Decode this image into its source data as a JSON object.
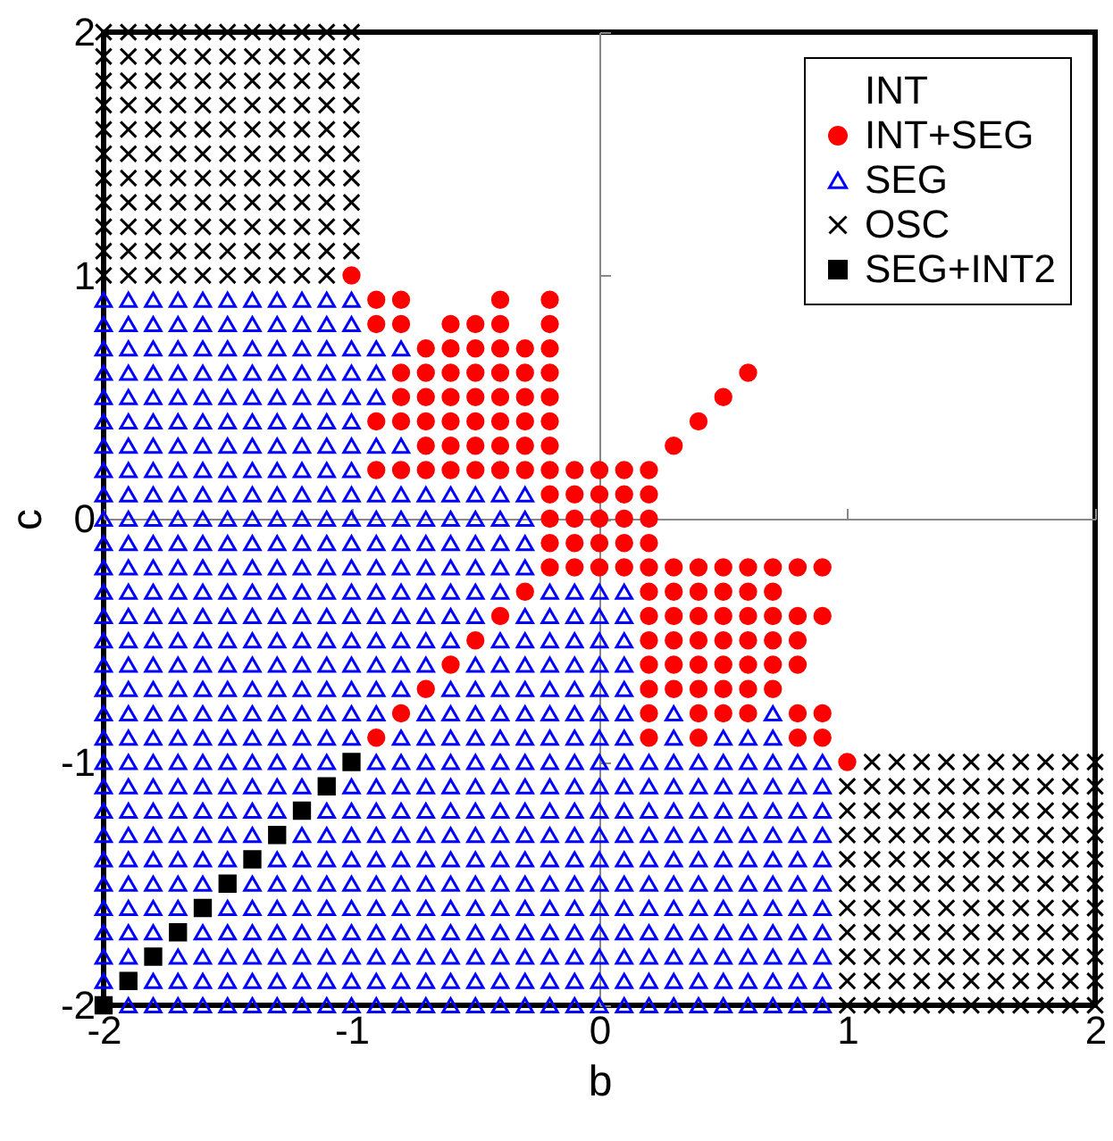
{
  "chart_data": {
    "type": "scatter",
    "xlabel": "b",
    "ylabel": "c",
    "xlim": [
      -2,
      2
    ],
    "ylim": [
      -2,
      2
    ],
    "xticks": [
      -2,
      -1,
      0,
      1,
      2
    ],
    "yticks": [
      -2,
      -1,
      0,
      1,
      2
    ],
    "legend": "top right",
    "series": [
      {
        "name": "INT",
        "marker": "none"
      },
      {
        "name": "INT+SEG",
        "color": "#ff0000",
        "marker": "circle",
        "x": [
          -1,
          -0.9,
          -0.8,
          -0.4,
          -0.2,
          -0.9,
          -0.8,
          -0.6,
          -0.5,
          -0.4,
          -0.2,
          -0.7,
          -0.6,
          -0.5,
          -0.4,
          -0.3,
          -0.2,
          -0.8,
          -0.7,
          -0.6,
          -0.5,
          -0.4,
          -0.3,
          -0.2,
          0.6,
          -0.8,
          -0.7,
          -0.6,
          -0.5,
          -0.4,
          -0.3,
          -0.2,
          0.5,
          -0.9,
          -0.8,
          -0.7,
          -0.6,
          -0.5,
          -0.4,
          -0.3,
          -0.2,
          0.4,
          -0.7,
          -0.6,
          -0.5,
          -0.4,
          -0.3,
          -0.2,
          0.3,
          -0.9,
          -0.8,
          -0.7,
          -0.6,
          -0.5,
          -0.4,
          -0.3,
          -0.2,
          -0.1,
          0,
          0.1,
          0.2,
          -0.2,
          -0.1,
          0,
          0.1,
          0.2,
          -0.2,
          -0.1,
          0,
          0.1,
          0.2,
          -0.2,
          -0.1,
          0,
          0.1,
          0.2,
          -0.2,
          -0.1,
          0,
          0.1,
          0.2,
          0.3,
          0.4,
          0.5,
          0.6,
          0.7,
          0.8,
          0.9,
          -0.3,
          0.2,
          0.3,
          0.4,
          0.5,
          0.6,
          0.7,
          -0.4,
          0.2,
          0.3,
          0.4,
          0.5,
          0.6,
          0.7,
          0.8,
          0.9,
          -0.5,
          0.2,
          0.3,
          0.4,
          0.5,
          0.6,
          0.7,
          0.8,
          -0.6,
          0.2,
          0.3,
          0.4,
          0.5,
          0.6,
          0.7,
          0.8,
          -0.7,
          0.2,
          0.3,
          0.4,
          0.5,
          0.6,
          0.7,
          -0.8,
          0.2,
          0.4,
          0.5,
          0.6,
          0.8,
          0.9,
          -0.9,
          0.2,
          0.4,
          0.8,
          0.9,
          1
        ],
        "values": [
          1,
          0.9,
          0.9,
          0.9,
          0.9,
          0.8,
          0.8,
          0.8,
          0.8,
          0.8,
          0.8,
          0.7,
          0.7,
          0.7,
          0.7,
          0.7,
          0.7,
          0.6,
          0.6,
          0.6,
          0.6,
          0.6,
          0.6,
          0.6,
          0.6,
          0.5,
          0.5,
          0.5,
          0.5,
          0.5,
          0.5,
          0.5,
          0.5,
          0.4,
          0.4,
          0.4,
          0.4,
          0.4,
          0.4,
          0.4,
          0.4,
          0.4,
          0.3,
          0.3,
          0.3,
          0.3,
          0.3,
          0.3,
          0.3,
          0.2,
          0.2,
          0.2,
          0.2,
          0.2,
          0.2,
          0.2,
          0.2,
          0.2,
          0.2,
          0.2,
          0.2,
          0.1,
          0.1,
          0.1,
          0.1,
          0.1,
          0,
          0,
          0,
          0,
          0,
          -0.1,
          -0.1,
          -0.1,
          -0.1,
          -0.1,
          -0.2,
          -0.2,
          -0.2,
          -0.2,
          -0.2,
          -0.2,
          -0.2,
          -0.2,
          -0.2,
          -0.2,
          -0.2,
          -0.2,
          -0.3,
          -0.3,
          -0.3,
          -0.3,
          -0.3,
          -0.3,
          -0.3,
          -0.4,
          -0.4,
          -0.4,
          -0.4,
          -0.4,
          -0.4,
          -0.4,
          -0.4,
          -0.4,
          -0.5,
          -0.5,
          -0.5,
          -0.5,
          -0.5,
          -0.5,
          -0.5,
          -0.5,
          -0.6,
          -0.6,
          -0.6,
          -0.6,
          -0.6,
          -0.6,
          -0.6,
          -0.6,
          -0.7,
          -0.7,
          -0.7,
          -0.7,
          -0.7,
          -0.7,
          -0.7,
          -0.8,
          -0.8,
          -0.8,
          -0.8,
          -0.8,
          -0.8,
          -0.8,
          -0.9,
          -0.9,
          -0.9,
          -0.9,
          -0.9,
          -1
        ]
      },
      {
        "name": "SEG",
        "color": "#0000ff",
        "marker": "triangle",
        "x": [
          -2,
          -1.9,
          -1.8,
          -1.7,
          -1.6,
          -1.5,
          -1.4,
          -1.3,
          -1.2,
          -1.1,
          -1,
          -2,
          -1.9,
          -1.8,
          -1.7,
          -1.6,
          -1.5,
          -1.4,
          -1.3,
          -1.2,
          -1.1,
          -1,
          -2,
          -1.9,
          -1.8,
          -1.7,
          -1.6,
          -1.5,
          -1.4,
          -1.3,
          -1.2,
          -1.1,
          -1,
          -0.9,
          -0.8,
          -2,
          -1.9,
          -1.8,
          -1.7,
          -1.6,
          -1.5,
          -1.4,
          -1.3,
          -1.2,
          -1.1,
          -1,
          -0.9,
          -2,
          -1.9,
          -1.8,
          -1.7,
          -1.6,
          -1.5,
          -1.4,
          -1.3,
          -1.2,
          -1.1,
          -1,
          -0.9,
          -2,
          -1.9,
          -1.8,
          -1.7,
          -1.6,
          -1.5,
          -1.4,
          -1.3,
          -1.2,
          -1.1,
          -1,
          -2,
          -1.9,
          -1.8,
          -1.7,
          -1.6,
          -1.5,
          -1.4,
          -1.3,
          -1.2,
          -1.1,
          -1,
          -0.9,
          -0.8,
          -2,
          -1.9,
          -1.8,
          -1.7,
          -1.6,
          -1.5,
          -1.4,
          -1.3,
          -1.2,
          -1.1,
          -1,
          -2,
          -1.9,
          -1.8,
          -1.7,
          -1.6,
          -1.5,
          -1.4,
          -1.3,
          -1.2,
          -1.1,
          -1,
          -0.9,
          -0.8,
          -0.7,
          -0.6,
          -0.5,
          -0.4,
          -0.3,
          -2,
          -1.9,
          -1.8,
          -1.7,
          -1.6,
          -1.5,
          -1.4,
          -1.3,
          -1.2,
          -1.1,
          -1,
          -0.9,
          -0.8,
          -0.7,
          -0.6,
          -0.5,
          -0.4,
          -0.3,
          -2,
          -1.9,
          -1.8,
          -1.7,
          -1.6,
          -1.5,
          -1.4,
          -1.3,
          -1.2,
          -1.1,
          -1,
          -0.9,
          -0.8,
          -0.7,
          -0.6,
          -0.5,
          -0.4,
          -0.3,
          -2,
          -1.9,
          -1.8,
          -1.7,
          -1.6,
          -1.5,
          -1.4,
          -1.3,
          -1.2,
          -1.1,
          -1,
          -0.9,
          -0.8,
          -0.7,
          -0.6,
          -0.5,
          -0.4,
          -0.3,
          -2,
          -1.9,
          -1.8,
          -1.7,
          -1.6,
          -1.5,
          -1.4,
          -1.3,
          -1.2,
          -1.1,
          -1,
          -0.9,
          -0.8,
          -0.7,
          -0.6,
          -0.5,
          -0.4,
          -0.2,
          -0.1,
          0,
          0.1,
          -2,
          -1.9,
          -1.8,
          -1.7,
          -1.6,
          -1.5,
          -1.4,
          -1.3,
          -1.2,
          -1.1,
          -1,
          -0.9,
          -0.8,
          -0.7,
          -0.6,
          -0.5,
          -0.3,
          -0.2,
          -0.1,
          0,
          0.1,
          -2,
          -1.9,
          -1.8,
          -1.7,
          -1.6,
          -1.5,
          -1.4,
          -1.3,
          -1.2,
          -1.1,
          -1,
          -0.9,
          -0.8,
          -0.7,
          -0.6,
          -0.4,
          -0.3,
          -0.2,
          -0.1,
          0,
          0.1,
          -2,
          -1.9,
          -1.8,
          -1.7,
          -1.6,
          -1.5,
          -1.4,
          -1.3,
          -1.2,
          -1.1,
          -1,
          -0.9,
          -0.8,
          -0.7,
          -0.5,
          -0.4,
          -0.3,
          -0.2,
          -0.1,
          0,
          0.1,
          -2,
          -1.9,
          -1.8,
          -1.7,
          -1.6,
          -1.5,
          -1.4,
          -1.3,
          -1.2,
          -1.1,
          -1,
          -0.9,
          -0.8,
          -0.6,
          -0.5,
          -0.4,
          -0.3,
          -0.2,
          -0.1,
          0,
          0.1,
          -2,
          -1.9,
          -1.8,
          -1.7,
          -1.6,
          -1.5,
          -1.4,
          -1.3,
          -1.2,
          -1.1,
          -1,
          -0.9,
          -0.7,
          -0.6,
          -0.5,
          -0.4,
          -0.3,
          -0.2,
          -0.1,
          0,
          0.1,
          0.3,
          0.7,
          -2,
          -1.9,
          -1.8,
          -1.7,
          -1.6,
          -1.5,
          -1.4,
          -1.3,
          -1.2,
          -1.1,
          -1,
          -0.8,
          -0.7,
          -0.6,
          -0.5,
          -0.4,
          -0.3,
          -0.2,
          -0.1,
          0,
          0.1,
          0.3,
          0.5,
          0.6,
          0.7,
          -2,
          -1.9,
          -1.8,
          -1.7,
          -1.6,
          -1.5,
          -1.4,
          -1.3,
          -1.2,
          -1.1,
          -0.9,
          -0.8,
          -0.7,
          -0.6,
          -0.5,
          -0.4,
          -0.3,
          -0.2,
          -0.1,
          0,
          0.1,
          0.2,
          0.3,
          0.4,
          0.5,
          0.6,
          0.7,
          0.8,
          0.9,
          -2,
          -1.9,
          -1.8,
          -1.7,
          -1.6,
          -1.5,
          -1.4,
          -1.3,
          -1.2,
          -1,
          -0.9,
          -0.8,
          -0.7,
          -0.6,
          -0.5,
          -0.4,
          -0.3,
          -0.2,
          -0.1,
          0,
          0.1,
          0.2,
          0.3,
          0.4,
          0.5,
          0.6,
          0.7,
          0.8,
          0.9,
          -2,
          -1.9,
          -1.8,
          -1.7,
          -1.6,
          -1.5,
          -1.4,
          -1.3,
          -1.1,
          -1,
          -0.9,
          -0.8,
          -0.7,
          -0.6,
          -0.5,
          -0.4,
          -0.3,
          -0.2,
          -0.1,
          0,
          0.1,
          0.2,
          0.3,
          0.4,
          0.5,
          0.6,
          0.7,
          0.8,
          0.9,
          -2,
          -1.9,
          -1.8,
          -1.7,
          -1.6,
          -1.5,
          -1.4,
          -1.2,
          -1.1,
          -1,
          -0.9,
          -0.8,
          -0.7,
          -0.6,
          -0.5,
          -0.4,
          -0.3,
          -0.2,
          -0.1,
          0,
          0.1,
          0.2,
          0.3,
          0.4,
          0.5,
          0.6,
          0.7,
          0.8,
          0.9,
          -2,
          -1.9,
          -1.8,
          -1.7,
          -1.6,
          -1.5,
          -1.3,
          -1.2,
          -1.1,
          -1,
          -0.9,
          -0.8,
          -0.7,
          -0.6,
          -0.5,
          -0.4,
          -0.3,
          -0.2,
          -0.1,
          0,
          0.1,
          0.2,
          0.3,
          0.4,
          0.5,
          0.6,
          0.7,
          0.8,
          0.9,
          -2,
          -1.9,
          -1.8,
          -1.7,
          -1.6,
          -1.4,
          -1.3,
          -1.2,
          -1.1,
          -1,
          -0.9,
          -0.8,
          -0.7,
          -0.6,
          -0.5,
          -0.4,
          -0.3,
          -0.2,
          -0.1,
          0,
          0.1,
          0.2,
          0.3,
          0.4,
          0.5,
          0.6,
          0.7,
          0.8,
          0.9,
          -2,
          -1.9,
          -1.8,
          -1.7,
          -1.5,
          -1.4,
          -1.3,
          -1.2,
          -1.1,
          -1,
          -0.9,
          -0.8,
          -0.7,
          -0.6,
          -0.5,
          -0.4,
          -0.3,
          -0.2,
          -0.1,
          0,
          0.1,
          0.2,
          0.3,
          0.4,
          0.5,
          0.6,
          0.7,
          0.8,
          0.9,
          -2,
          -1.9,
          -1.8,
          -1.6,
          -1.5,
          -1.4,
          -1.3,
          -1.2,
          -1.1,
          -1,
          -0.9,
          -0.8,
          -0.7,
          -0.6,
          -0.5,
          -0.4,
          -0.3,
          -0.2,
          -0.1,
          0,
          0.1,
          0.2,
          0.3,
          0.4,
          0.5,
          0.6,
          0.7,
          0.8,
          0.9,
          -2,
          -1.9,
          -1.7,
          -1.6,
          -1.5,
          -1.4,
          -1.3,
          -1.2,
          -1.1,
          -1,
          -0.9,
          -0.8,
          -0.7,
          -0.6,
          -0.5,
          -0.4,
          -0.3,
          -0.2,
          -0.1,
          0,
          0.1,
          0.2,
          0.3,
          0.4,
          0.5,
          0.6,
          0.7,
          0.8,
          0.9,
          -2,
          -1.8,
          -1.7,
          -1.6,
          -1.5,
          -1.4,
          -1.3,
          -1.2,
          -1.1,
          -1,
          -0.9,
          -0.8,
          -0.7,
          -0.6,
          -0.5,
          -0.4,
          -0.3,
          -0.2,
          -0.1,
          0,
          0.1,
          0.2,
          0.3,
          0.4,
          0.5,
          0.6,
          0.7,
          0.8,
          0.9,
          -1.9,
          -1.8,
          -1.7,
          -1.6,
          -1.5,
          -1.4,
          -1.3,
          -1.2,
          -1.1,
          -1,
          -0.9,
          -0.8,
          -0.7,
          -0.6,
          -0.5,
          -0.4,
          -0.3,
          -0.2,
          -0.1,
          0,
          0.1,
          0.2,
          0.3,
          0.4,
          0.5,
          0.6,
          0.7,
          0.8,
          0.9
        ],
        "values": [
          0.9,
          0.9,
          0.9,
          0.9,
          0.9,
          0.9,
          0.9,
          0.9,
          0.9,
          0.9,
          0.9,
          0.8,
          0.8,
          0.8,
          0.8,
          0.8,
          0.8,
          0.8,
          0.8,
          0.8,
          0.8,
          0.8,
          0.7,
          0.7,
          0.7,
          0.7,
          0.7,
          0.7,
          0.7,
          0.7,
          0.7,
          0.7,
          0.7,
          0.7,
          0.7,
          0.6,
          0.6,
          0.6,
          0.6,
          0.6,
          0.6,
          0.6,
          0.6,
          0.6,
          0.6,
          0.6,
          0.6,
          0.5,
          0.5,
          0.5,
          0.5,
          0.5,
          0.5,
          0.5,
          0.5,
          0.5,
          0.5,
          0.5,
          0.5,
          0.4,
          0.4,
          0.4,
          0.4,
          0.4,
          0.4,
          0.4,
          0.4,
          0.4,
          0.4,
          0.4,
          0.3,
          0.3,
          0.3,
          0.3,
          0.3,
          0.3,
          0.3,
          0.3,
          0.3,
          0.3,
          0.3,
          0.3,
          0.3,
          0.2,
          0.2,
          0.2,
          0.2,
          0.2,
          0.2,
          0.2,
          0.2,
          0.2,
          0.2,
          0.2,
          0.1,
          0.1,
          0.1,
          0.1,
          0.1,
          0.1,
          0.1,
          0.1,
          0.1,
          0.1,
          0.1,
          0.1,
          0.1,
          0.1,
          0.1,
          0.1,
          0.1,
          0.1,
          0,
          0,
          0,
          0,
          0,
          0,
          0,
          0,
          0,
          0,
          0,
          0,
          0,
          0,
          0,
          0,
          0,
          0,
          -0.1,
          -0.1,
          -0.1,
          -0.1,
          -0.1,
          -0.1,
          -0.1,
          -0.1,
          -0.1,
          -0.1,
          -0.1,
          -0.1,
          -0.1,
          -0.1,
          -0.1,
          -0.1,
          -0.1,
          -0.1,
          -0.2,
          -0.2,
          -0.2,
          -0.2,
          -0.2,
          -0.2,
          -0.2,
          -0.2,
          -0.2,
          -0.2,
          -0.2,
          -0.2,
          -0.2,
          -0.2,
          -0.2,
          -0.2,
          -0.2,
          -0.2,
          -0.3,
          -0.3,
          -0.3,
          -0.3,
          -0.3,
          -0.3,
          -0.3,
          -0.3,
          -0.3,
          -0.3,
          -0.3,
          -0.3,
          -0.3,
          -0.3,
          -0.3,
          -0.3,
          -0.3,
          -0.3,
          -0.3,
          -0.3,
          -0.3,
          -0.4,
          -0.4,
          -0.4,
          -0.4,
          -0.4,
          -0.4,
          -0.4,
          -0.4,
          -0.4,
          -0.4,
          -0.4,
          -0.4,
          -0.4,
          -0.4,
          -0.4,
          -0.4,
          -0.4,
          -0.4,
          -0.4,
          -0.4,
          -0.4,
          -0.5,
          -0.5,
          -0.5,
          -0.5,
          -0.5,
          -0.5,
          -0.5,
          -0.5,
          -0.5,
          -0.5,
          -0.5,
          -0.5,
          -0.5,
          -0.5,
          -0.5,
          -0.5,
          -0.5,
          -0.5,
          -0.5,
          -0.5,
          -0.5,
          -0.6,
          -0.6,
          -0.6,
          -0.6,
          -0.6,
          -0.6,
          -0.6,
          -0.6,
          -0.6,
          -0.6,
          -0.6,
          -0.6,
          -0.6,
          -0.6,
          -0.6,
          -0.6,
          -0.6,
          -0.6,
          -0.6,
          -0.6,
          -0.6,
          -0.7,
          -0.7,
          -0.7,
          -0.7,
          -0.7,
          -0.7,
          -0.7,
          -0.7,
          -0.7,
          -0.7,
          -0.7,
          -0.7,
          -0.7,
          -0.7,
          -0.7,
          -0.7,
          -0.7,
          -0.7,
          -0.7,
          -0.7,
          -0.7,
          -0.8,
          -0.8,
          -0.8,
          -0.8,
          -0.8,
          -0.8,
          -0.8,
          -0.8,
          -0.8,
          -0.8,
          -0.8,
          -0.8,
          -0.8,
          -0.8,
          -0.8,
          -0.8,
          -0.8,
          -0.8,
          -0.8,
          -0.8,
          -0.8,
          -0.8,
          -0.8,
          -0.9,
          -0.9,
          -0.9,
          -0.9,
          -0.9,
          -0.9,
          -0.9,
          -0.9,
          -0.9,
          -0.9,
          -0.9,
          -0.9,
          -0.9,
          -0.9,
          -0.9,
          -0.9,
          -0.9,
          -0.9,
          -0.9,
          -0.9,
          -0.9,
          -0.9,
          -0.9,
          -0.9,
          -0.9,
          -1,
          -1,
          -1,
          -1,
          -1,
          -1,
          -1,
          -1,
          -1,
          -1,
          -1,
          -1,
          -1,
          -1,
          -1,
          -1,
          -1,
          -1,
          -1,
          -1,
          -1,
          -1,
          -1,
          -1,
          -1,
          -1,
          -1,
          -1,
          -1,
          -1.1,
          -1.1,
          -1.1,
          -1.1,
          -1.1,
          -1.1,
          -1.1,
          -1.1,
          -1.1,
          -1.1,
          -1.1,
          -1.1,
          -1.1,
          -1.1,
          -1.1,
          -1.1,
          -1.1,
          -1.1,
          -1.1,
          -1.1,
          -1.1,
          -1.1,
          -1.1,
          -1.1,
          -1.1,
          -1.1,
          -1.1,
          -1.1,
          -1.1,
          -1.2,
          -1.2,
          -1.2,
          -1.2,
          -1.2,
          -1.2,
          -1.2,
          -1.2,
          -1.2,
          -1.2,
          -1.2,
          -1.2,
          -1.2,
          -1.2,
          -1.2,
          -1.2,
          -1.2,
          -1.2,
          -1.2,
          -1.2,
          -1.2,
          -1.2,
          -1.2,
          -1.2,
          -1.2,
          -1.2,
          -1.2,
          -1.2,
          -1.2,
          -1.3,
          -1.3,
          -1.3,
          -1.3,
          -1.3,
          -1.3,
          -1.3,
          -1.3,
          -1.3,
          -1.3,
          -1.3,
          -1.3,
          -1.3,
          -1.3,
          -1.3,
          -1.3,
          -1.3,
          -1.3,
          -1.3,
          -1.3,
          -1.3,
          -1.3,
          -1.3,
          -1.3,
          -1.3,
          -1.3,
          -1.3,
          -1.3,
          -1.3,
          -1.4,
          -1.4,
          -1.4,
          -1.4,
          -1.4,
          -1.4,
          -1.4,
          -1.4,
          -1.4,
          -1.4,
          -1.4,
          -1.4,
          -1.4,
          -1.4,
          -1.4,
          -1.4,
          -1.4,
          -1.4,
          -1.4,
          -1.4,
          -1.4,
          -1.4,
          -1.4,
          -1.4,
          -1.4,
          -1.4,
          -1.4,
          -1.4,
          -1.4,
          -1.5,
          -1.5,
          -1.5,
          -1.5,
          -1.5,
          -1.5,
          -1.5,
          -1.5,
          -1.5,
          -1.5,
          -1.5,
          -1.5,
          -1.5,
          -1.5,
          -1.5,
          -1.5,
          -1.5,
          -1.5,
          -1.5,
          -1.5,
          -1.5,
          -1.5,
          -1.5,
          -1.5,
          -1.5,
          -1.5,
          -1.5,
          -1.5,
          -1.5,
          -1.6,
          -1.6,
          -1.6,
          -1.6,
          -1.6,
          -1.6,
          -1.6,
          -1.6,
          -1.6,
          -1.6,
          -1.6,
          -1.6,
          -1.6,
          -1.6,
          -1.6,
          -1.6,
          -1.6,
          -1.6,
          -1.6,
          -1.6,
          -1.6,
          -1.6,
          -1.6,
          -1.6,
          -1.6,
          -1.6,
          -1.6,
          -1.6,
          -1.6,
          -1.7,
          -1.7,
          -1.7,
          -1.7,
          -1.7,
          -1.7,
          -1.7,
          -1.7,
          -1.7,
          -1.7,
          -1.7,
          -1.7,
          -1.7,
          -1.7,
          -1.7,
          -1.7,
          -1.7,
          -1.7,
          -1.7,
          -1.7,
          -1.7,
          -1.7,
          -1.7,
          -1.7,
          -1.7,
          -1.7,
          -1.7,
          -1.7,
          -1.7,
          -1.8,
          -1.8,
          -1.8,
          -1.8,
          -1.8,
          -1.8,
          -1.8,
          -1.8,
          -1.8,
          -1.8,
          -1.8,
          -1.8,
          -1.8,
          -1.8,
          -1.8,
          -1.8,
          -1.8,
          -1.8,
          -1.8,
          -1.8,
          -1.8,
          -1.8,
          -1.8,
          -1.8,
          -1.8,
          -1.8,
          -1.8,
          -1.8,
          -1.8,
          -1.9,
          -1.9,
          -1.9,
          -1.9,
          -1.9,
          -1.9,
          -1.9,
          -1.9,
          -1.9,
          -1.9,
          -1.9,
          -1.9,
          -1.9,
          -1.9,
          -1.9,
          -1.9,
          -1.9,
          -1.9,
          -1.9,
          -1.9,
          -1.9,
          -1.9,
          -1.9,
          -1.9,
          -1.9,
          -1.9,
          -1.9,
          -1.9,
          -1.9,
          -2,
          -2,
          -2,
          -2,
          -2,
          -2,
          -2,
          -2,
          -2,
          -2,
          -2,
          -2,
          -2,
          -2,
          -2,
          -2,
          -2,
          -2,
          -2,
          -2,
          -2,
          -2,
          -2,
          -2,
          -2,
          -2,
          -2,
          -2,
          -2
        ]
      },
      {
        "name": "OSC",
        "color": "#000000",
        "marker": "cross",
        "x": [
          -2,
          -1.9,
          -1.8,
          -1.7,
          -1.6,
          -1.5,
          -1.4,
          -1.3,
          -1.2,
          -1.1,
          -1,
          -2,
          -1.9,
          -1.8,
          -1.7,
          -1.6,
          -1.5,
          -1.4,
          -1.3,
          -1.2,
          -1.1,
          -1,
          -2,
          -1.9,
          -1.8,
          -1.7,
          -1.6,
          -1.5,
          -1.4,
          -1.3,
          -1.2,
          -1.1,
          -1,
          -2,
          -1.9,
          -1.8,
          -1.7,
          -1.6,
          -1.5,
          -1.4,
          -1.3,
          -1.2,
          -1.1,
          -1,
          -2,
          -1.9,
          -1.8,
          -1.7,
          -1.6,
          -1.5,
          -1.4,
          -1.3,
          -1.2,
          -1.1,
          -1,
          -2,
          -1.9,
          -1.8,
          -1.7,
          -1.6,
          -1.5,
          -1.4,
          -1.3,
          -1.2,
          -1.1,
          -1,
          -2,
          -1.9,
          -1.8,
          -1.7,
          -1.6,
          -1.5,
          -1.4,
          -1.3,
          -1.2,
          -1.1,
          -1,
          -2,
          -1.9,
          -1.8,
          -1.7,
          -1.6,
          -1.5,
          -1.4,
          -1.3,
          -1.2,
          -1.1,
          -1,
          -2,
          -1.9,
          -1.8,
          -1.7,
          -1.6,
          -1.5,
          -1.4,
          -1.3,
          -1.2,
          -1.1,
          -1,
          -2,
          -1.9,
          -1.8,
          -1.7,
          -1.6,
          -1.5,
          -1.4,
          -1.3,
          -1.2,
          -1.1,
          -1,
          -2,
          -1.9,
          -1.8,
          -1.7,
          -1.6,
          -1.5,
          -1.4,
          -1.3,
          -1.2,
          -1.1,
          1.1,
          1.2,
          1.3,
          1.4,
          1.5,
          1.6,
          1.7,
          1.8,
          1.9,
          2,
          1,
          1.1,
          1.2,
          1.3,
          1.4,
          1.5,
          1.6,
          1.7,
          1.8,
          1.9,
          2,
          1,
          1.1,
          1.2,
          1.3,
          1.4,
          1.5,
          1.6,
          1.7,
          1.8,
          1.9,
          2,
          1,
          1.1,
          1.2,
          1.3,
          1.4,
          1.5,
          1.6,
          1.7,
          1.8,
          1.9,
          2,
          1,
          1.1,
          1.2,
          1.3,
          1.4,
          1.5,
          1.6,
          1.7,
          1.8,
          1.9,
          2,
          1,
          1.1,
          1.2,
          1.3,
          1.4,
          1.5,
          1.6,
          1.7,
          1.8,
          1.9,
          2,
          1,
          1.1,
          1.2,
          1.3,
          1.4,
          1.5,
          1.6,
          1.7,
          1.8,
          1.9,
          2,
          1,
          1.1,
          1.2,
          1.3,
          1.4,
          1.5,
          1.6,
          1.7,
          1.8,
          1.9,
          2,
          1,
          1.1,
          1.2,
          1.3,
          1.4,
          1.5,
          1.6,
          1.7,
          1.8,
          1.9,
          2,
          1,
          1.1,
          1.2,
          1.3,
          1.4,
          1.5,
          1.6,
          1.7,
          1.8,
          1.9,
          2,
          1,
          1.1,
          1.2,
          1.3,
          1.4,
          1.5,
          1.6,
          1.7,
          1.8,
          1.9,
          2
        ],
        "values": [
          2,
          2,
          2,
          2,
          2,
          2,
          2,
          2,
          2,
          2,
          2,
          1.9,
          1.9,
          1.9,
          1.9,
          1.9,
          1.9,
          1.9,
          1.9,
          1.9,
          1.9,
          1.9,
          1.8,
          1.8,
          1.8,
          1.8,
          1.8,
          1.8,
          1.8,
          1.8,
          1.8,
          1.8,
          1.8,
          1.7,
          1.7,
          1.7,
          1.7,
          1.7,
          1.7,
          1.7,
          1.7,
          1.7,
          1.7,
          1.7,
          1.6,
          1.6,
          1.6,
          1.6,
          1.6,
          1.6,
          1.6,
          1.6,
          1.6,
          1.6,
          1.6,
          1.5,
          1.5,
          1.5,
          1.5,
          1.5,
          1.5,
          1.5,
          1.5,
          1.5,
          1.5,
          1.5,
          1.4,
          1.4,
          1.4,
          1.4,
          1.4,
          1.4,
          1.4,
          1.4,
          1.4,
          1.4,
          1.4,
          1.3,
          1.3,
          1.3,
          1.3,
          1.3,
          1.3,
          1.3,
          1.3,
          1.3,
          1.3,
          1.3,
          1.2,
          1.2,
          1.2,
          1.2,
          1.2,
          1.2,
          1.2,
          1.2,
          1.2,
          1.2,
          1.2,
          1.1,
          1.1,
          1.1,
          1.1,
          1.1,
          1.1,
          1.1,
          1.1,
          1.1,
          1.1,
          1.1,
          1,
          1,
          1,
          1,
          1,
          1,
          1,
          1,
          1,
          1,
          -1,
          -1,
          -1,
          -1,
          -1,
          -1,
          -1,
          -1,
          -1,
          -1,
          -1.1,
          -1.1,
          -1.1,
          -1.1,
          -1.1,
          -1.1,
          -1.1,
          -1.1,
          -1.1,
          -1.1,
          -1.1,
          -1.2,
          -1.2,
          -1.2,
          -1.2,
          -1.2,
          -1.2,
          -1.2,
          -1.2,
          -1.2,
          -1.2,
          -1.2,
          -1.3,
          -1.3,
          -1.3,
          -1.3,
          -1.3,
          -1.3,
          -1.3,
          -1.3,
          -1.3,
          -1.3,
          -1.3,
          -1.4,
          -1.4,
          -1.4,
          -1.4,
          -1.4,
          -1.4,
          -1.4,
          -1.4,
          -1.4,
          -1.4,
          -1.4,
          -1.5,
          -1.5,
          -1.5,
          -1.5,
          -1.5,
          -1.5,
          -1.5,
          -1.5,
          -1.5,
          -1.5,
          -1.5,
          -1.6,
          -1.6,
          -1.6,
          -1.6,
          -1.6,
          -1.6,
          -1.6,
          -1.6,
          -1.6,
          -1.6,
          -1.6,
          -1.7,
          -1.7,
          -1.7,
          -1.7,
          -1.7,
          -1.7,
          -1.7,
          -1.7,
          -1.7,
          -1.7,
          -1.7,
          -1.8,
          -1.8,
          -1.8,
          -1.8,
          -1.8,
          -1.8,
          -1.8,
          -1.8,
          -1.8,
          -1.8,
          -1.8,
          -1.9,
          -1.9,
          -1.9,
          -1.9,
          -1.9,
          -1.9,
          -1.9,
          -1.9,
          -1.9,
          -1.9,
          -1.9,
          -2,
          -2,
          -2,
          -2,
          -2,
          -2,
          -2,
          -2,
          -2,
          -2,
          -2
        ]
      },
      {
        "name": "SEG+INT2",
        "color": "#000000",
        "marker": "square",
        "x": [
          -1,
          -1.1,
          -1.2,
          -1.3,
          -1.4,
          -1.5,
          -1.6,
          -1.7,
          -1.8,
          -1.9,
          -2
        ],
        "values": [
          -1,
          -1.1,
          -1.2,
          -1.3,
          -1.4,
          -1.5,
          -1.6,
          -1.7,
          -1.8,
          -1.9,
          -2
        ]
      }
    ]
  }
}
